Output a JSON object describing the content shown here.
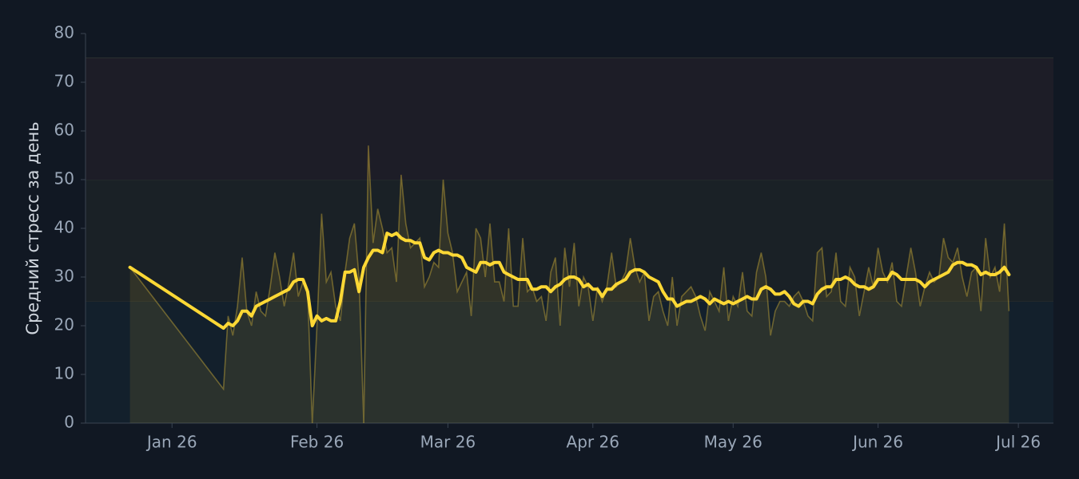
{
  "chart_data": {
    "type": "line",
    "ylabel": "Средний стресс за день",
    "xlim": [
      -18.5,
      188.5
    ],
    "ylim": [
      0,
      80
    ],
    "xticks": [
      {
        "value": 0,
        "label": "Jan 26"
      },
      {
        "value": 31,
        "label": "Feb 26"
      },
      {
        "value": 59,
        "label": "Mar 26"
      },
      {
        "value": 90,
        "label": "Apr 26"
      },
      {
        "value": 120,
        "label": "May 26"
      },
      {
        "value": 151,
        "label": "Jun 26"
      },
      {
        "value": 181,
        "label": "Jul 26"
      }
    ],
    "yticks": [
      0,
      10,
      20,
      30,
      40,
      50,
      60,
      70,
      80
    ],
    "bands": [
      {
        "range": [
          0,
          25
        ],
        "color": "#13202c"
      },
      {
        "range": [
          25,
          50
        ],
        "color": "#1a2126"
      },
      {
        "range": [
          50,
          75
        ],
        "color": "#1d1d27"
      }
    ],
    "x": [
      -9,
      11,
      12,
      13,
      14,
      15,
      16,
      17,
      18,
      19,
      20,
      21,
      22,
      23,
      24,
      25,
      26,
      27,
      28,
      29,
      30,
      31,
      32,
      33,
      34,
      35,
      36,
      37,
      38,
      39,
      40,
      41,
      42,
      43,
      44,
      45,
      46,
      47,
      48,
      49,
      50,
      51,
      52,
      53,
      54,
      55,
      56,
      57,
      58,
      59,
      60,
      61,
      62,
      63,
      64,
      65,
      66,
      67,
      68,
      69,
      70,
      71,
      72,
      73,
      74,
      75,
      76,
      77,
      78,
      79,
      80,
      81,
      82,
      83,
      84,
      85,
      86,
      87,
      88,
      89,
      90,
      91,
      92,
      93,
      94,
      95,
      96,
      97,
      98,
      99,
      100,
      101,
      102,
      103,
      104,
      105,
      106,
      107,
      108,
      109,
      110,
      111,
      112,
      113,
      114,
      115,
      116,
      117,
      118,
      119,
      120,
      121,
      122,
      123,
      124,
      125,
      126,
      127,
      128,
      129,
      130,
      131,
      132,
      133,
      134,
      135,
      136,
      137,
      138,
      139,
      140,
      141,
      142,
      143,
      144,
      145,
      146,
      147,
      148,
      149,
      150,
      151,
      152,
      153,
      154,
      155,
      156,
      157,
      158,
      159,
      160,
      161,
      162,
      163,
      164,
      165,
      166,
      167,
      168,
      169,
      170,
      171,
      172,
      173,
      174,
      175,
      176,
      177,
      178,
      179
    ],
    "series": [
      {
        "color": "#ffd43b",
        "area": true,
        "values": [
          32,
          7,
          22,
          18,
          24,
          34,
          23,
          20,
          27,
          23,
          22,
          28,
          35,
          30,
          24,
          29,
          35,
          26,
          29,
          27,
          0,
          20,
          43,
          29,
          31,
          24,
          21,
          31,
          38,
          41,
          30,
          0,
          57,
          37,
          44,
          40,
          35,
          36,
          29,
          51,
          41,
          36,
          37,
          38,
          28,
          30,
          33,
          32,
          50,
          39,
          35,
          27,
          29,
          31,
          22,
          40,
          38,
          30,
          41,
          29,
          29,
          25,
          40,
          24,
          24,
          38,
          27,
          28,
          25,
          26,
          21,
          31,
          34,
          20,
          36,
          28,
          37,
          24,
          30,
          28,
          21,
          28,
          25,
          28,
          35,
          28,
          29,
          31,
          38,
          32,
          29,
          31,
          21,
          26,
          27,
          23,
          20,
          30,
          20,
          26,
          27,
          28,
          26,
          22,
          19,
          27,
          25,
          23,
          32,
          21,
          26,
          24,
          31,
          23,
          22,
          31,
          35,
          30,
          18,
          23,
          25,
          25,
          24,
          26,
          27,
          25,
          22,
          21,
          35,
          36,
          26,
          27,
          35,
          25,
          24,
          32,
          30,
          22,
          27,
          32,
          28,
          36,
          31,
          29,
          33,
          25,
          24,
          30,
          36,
          31,
          24,
          28,
          31,
          29,
          30,
          38,
          34,
          33,
          36,
          30,
          26,
          31,
          32,
          23,
          38,
          30,
          32,
          27,
          41,
          23
        ]
      },
      {
        "color": "#fdd835",
        "area": false,
        "values": [
          32,
          19.5,
          20.5,
          20,
          21,
          23,
          23,
          22,
          24,
          24.5,
          25,
          25.5,
          26,
          26.5,
          27,
          27.5,
          29,
          29.5,
          29.5,
          27,
          20,
          22,
          21,
          21.5,
          21,
          21,
          25,
          31,
          31,
          31.5,
          27,
          32,
          34,
          35.5,
          35.5,
          35,
          39,
          38.5,
          39,
          38,
          37.5,
          37.5,
          37,
          37,
          34,
          33.5,
          35,
          35.5,
          35,
          35,
          34.5,
          34.5,
          34,
          32,
          31.5,
          31,
          33,
          33,
          32.5,
          33,
          33,
          31,
          30.5,
          30,
          29.5,
          29.5,
          29.5,
          27.5,
          27.5,
          28,
          28,
          27,
          28,
          28.5,
          29.5,
          30,
          30,
          29.5,
          28,
          28.5,
          27.5,
          27.5,
          26,
          27.5,
          27.5,
          28.5,
          29,
          29.5,
          31,
          31.5,
          31.5,
          31,
          30,
          29.5,
          29,
          27,
          25.5,
          25.5,
          24,
          24.5,
          25,
          25,
          25.5,
          26,
          25.5,
          24.5,
          25.5,
          25,
          24.5,
          25,
          24.5,
          25,
          25.5,
          26,
          25.5,
          25.5,
          27.5,
          28,
          27.5,
          26.5,
          26.5,
          27,
          26,
          24.5,
          24,
          25,
          25,
          24.5,
          26.5,
          27.5,
          28,
          28,
          29.5,
          29.5,
          30,
          29.5,
          28.5,
          28,
          28,
          27.5,
          28,
          29.5,
          29.5,
          29.5,
          31,
          30.5,
          29.5,
          29.5,
          29.5,
          29.5,
          29,
          28,
          29,
          29.5,
          30,
          30.5,
          31,
          32.5,
          33,
          33,
          32.5,
          32.5,
          32,
          30.5,
          31,
          30.5,
          30.5,
          31,
          32,
          30.5
        ]
      }
    ]
  }
}
